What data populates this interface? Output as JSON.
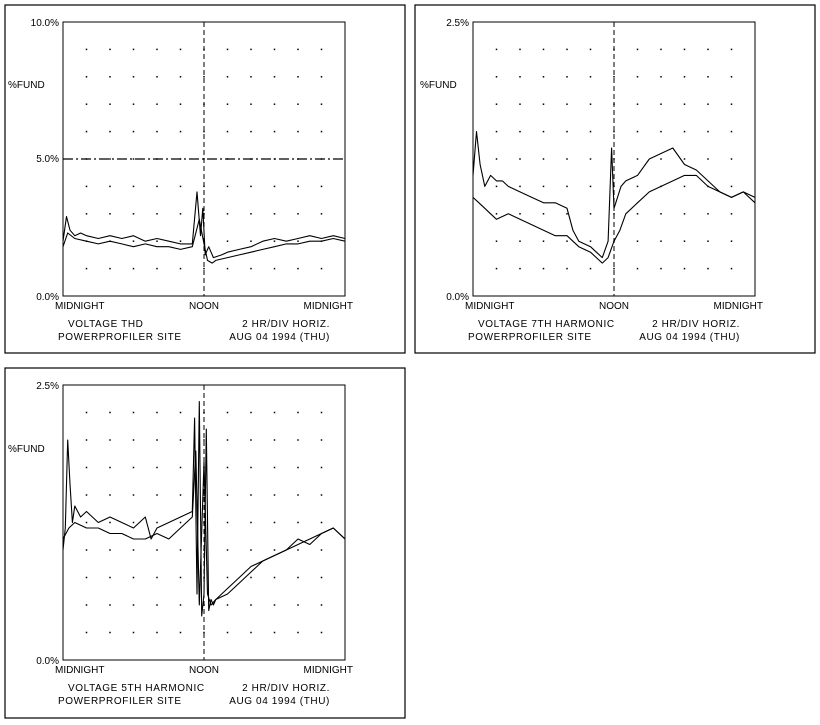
{
  "charts": [
    {
      "frame_name": "voltage-thd-panel",
      "chart_data": {
        "type": "line",
        "ylabel": "%FUND",
        "yticks": [
          "10.0%",
          "5.0%",
          "0.0%"
        ],
        "ylim": [
          0,
          10
        ],
        "xlim": [
          0,
          24
        ],
        "xticks": [
          "MIDNIGHT",
          "NOON",
          "MIDNIGHT"
        ],
        "reference_line": 5.0,
        "caption1_left": "VOLTAGE THD",
        "caption1_right": "2 HR/DIV HORIZ.",
        "caption2_left": "POWERPROFILER SITE",
        "caption2_right": "AUG 04 1994 (THU)",
        "series": [
          {
            "x": [
              0,
              0.3,
              0.6,
              1,
              1.5,
              2,
              3,
              4,
              5,
              6,
              7,
              8,
              9,
              10,
              11,
              11.4,
              11.7,
              11.9,
              12.1,
              12.4,
              12.8,
              13.5,
              14,
              15,
              16,
              17,
              18,
              19,
              20,
              21,
              22,
              23,
              24
            ],
            "y": [
              2.0,
              2.9,
              2.4,
              2.2,
              2.3,
              2.2,
              2.1,
              2.2,
              2.1,
              2.2,
              2.0,
              2.1,
              2.0,
              1.9,
              1.9,
              3.8,
              2.2,
              3.2,
              1.5,
              1.8,
              1.4,
              1.5,
              1.6,
              1.7,
              1.8,
              2.0,
              2.1,
              2.0,
              2.1,
              2.2,
              2.1,
              2.2,
              2.1
            ]
          },
          {
            "x": [
              0,
              0.4,
              1,
              2,
              3,
              4,
              5,
              6,
              7,
              8,
              9,
              10,
              11,
              11.6,
              12,
              12.3,
              12.7,
              13,
              14,
              15,
              16,
              17,
              18,
              19,
              20,
              21,
              22,
              23,
              24
            ],
            "y": [
              1.8,
              2.3,
              2.1,
              2.0,
              1.9,
              2.0,
              1.9,
              1.8,
              1.9,
              1.8,
              1.8,
              1.7,
              1.8,
              2.8,
              1.9,
              1.3,
              1.2,
              1.3,
              1.4,
              1.5,
              1.6,
              1.7,
              1.8,
              1.9,
              1.9,
              2.0,
              2.0,
              2.1,
              2.0
            ]
          }
        ]
      }
    },
    {
      "frame_name": "voltage-7th-harmonic-panel",
      "chart_data": {
        "type": "line",
        "ylabel": "%FUND",
        "yticks": [
          "2.5%",
          "0.0%"
        ],
        "ylim": [
          0,
          2.5
        ],
        "xlim": [
          0,
          24
        ],
        "xticks": [
          "MIDNIGHT",
          "NOON",
          "MIDNIGHT"
        ],
        "caption1_left": "VOLTAGE 7TH HARMONIC",
        "caption1_right": "2 HR/DIV HORIZ.",
        "caption2_left": "POWERPROFILER SITE",
        "caption2_right": "AUG 04 1994 (THU)",
        "series": [
          {
            "x": [
              0,
              0.3,
              0.6,
              1,
              1.5,
              2,
              2.5,
              3,
              4,
              5,
              6,
              7,
              8,
              8.5,
              9,
              10,
              10.5,
              11,
              11.5,
              11.8,
              12,
              12.3,
              12.6,
              13,
              14,
              15,
              16,
              17,
              18,
              19,
              20,
              21,
              22,
              23,
              24
            ],
            "y": [
              1.1,
              1.5,
              1.2,
              1.0,
              1.1,
              1.05,
              1.05,
              1.0,
              0.95,
              0.9,
              0.85,
              0.85,
              0.8,
              0.6,
              0.5,
              0.45,
              0.4,
              0.35,
              0.5,
              1.35,
              0.8,
              0.9,
              1.0,
              1.05,
              1.1,
              1.25,
              1.3,
              1.35,
              1.2,
              1.15,
              1.05,
              0.95,
              0.9,
              0.95,
              0.9
            ]
          },
          {
            "x": [
              0,
              0.5,
              1,
              1.5,
              2,
              3,
              4,
              5,
              6,
              7,
              8,
              9,
              10,
              11,
              11.5,
              12,
              12.5,
              13,
              14,
              15,
              16,
              17,
              18,
              19,
              20,
              21,
              22,
              23,
              24
            ],
            "y": [
              0.9,
              0.85,
              0.8,
              0.75,
              0.7,
              0.75,
              0.7,
              0.65,
              0.6,
              0.55,
              0.55,
              0.45,
              0.4,
              0.3,
              0.35,
              0.5,
              0.6,
              0.75,
              0.85,
              0.95,
              1.0,
              1.05,
              1.1,
              1.1,
              1.0,
              0.95,
              0.9,
              0.95,
              0.85
            ]
          }
        ]
      }
    },
    {
      "frame_name": "voltage-5th-harmonic-panel",
      "chart_data": {
        "type": "line",
        "ylabel": "%FUND",
        "yticks": [
          "2.5%",
          "0.0%"
        ],
        "ylim": [
          0,
          2.5
        ],
        "xlim": [
          0,
          24
        ],
        "xticks": [
          "MIDNIGHT",
          "NOON",
          "MIDNIGHT"
        ],
        "caption1_left": "VOLTAGE 5TH HARMONIC",
        "caption1_right": "2 HR/DIV HORIZ.",
        "caption2_left": "POWERPROFILER SITE",
        "caption2_right": "AUG 04 1994 (THU)",
        "series": [
          {
            "x": [
              0,
              0.2,
              0.4,
              0.6,
              0.8,
              1,
              1.5,
              2,
              3,
              4,
              5,
              6,
              7,
              7.5,
              8,
              9,
              10,
              11,
              11.2,
              11.4,
              11.6,
              11.8,
              12,
              12.2,
              12.4,
              12.6,
              12.8,
              13,
              14,
              15,
              16,
              17,
              18,
              19,
              20,
              21,
              22,
              23,
              24
            ],
            "y": [
              1.0,
              1.2,
              2.0,
              1.6,
              1.25,
              1.4,
              1.3,
              1.35,
              1.25,
              1.3,
              1.25,
              1.2,
              1.3,
              1.1,
              1.2,
              1.25,
              1.3,
              1.35,
              2.2,
              0.6,
              2.35,
              0.4,
              0.6,
              2.1,
              0.45,
              0.55,
              0.5,
              0.55,
              0.6,
              0.7,
              0.8,
              0.9,
              0.95,
              1.0,
              1.1,
              1.05,
              1.15,
              1.2,
              1.1
            ]
          },
          {
            "x": [
              0,
              0.5,
              1,
              2,
              3,
              4,
              5,
              6,
              7,
              8,
              9,
              10,
              10.5,
              11,
              11.3,
              11.6,
              12,
              12.3,
              12.6,
              13,
              14,
              15,
              16,
              17,
              18,
              19,
              20,
              21,
              22,
              23,
              24
            ],
            "y": [
              1.1,
              1.2,
              1.25,
              1.2,
              1.2,
              1.15,
              1.15,
              1.1,
              1.1,
              1.15,
              1.1,
              1.2,
              1.25,
              1.3,
              1.9,
              0.5,
              1.8,
              0.6,
              0.5,
              0.55,
              0.65,
              0.75,
              0.85,
              0.9,
              0.95,
              1.0,
              1.05,
              1.1,
              1.15,
              1.2,
              1.1
            ]
          }
        ]
      }
    }
  ]
}
